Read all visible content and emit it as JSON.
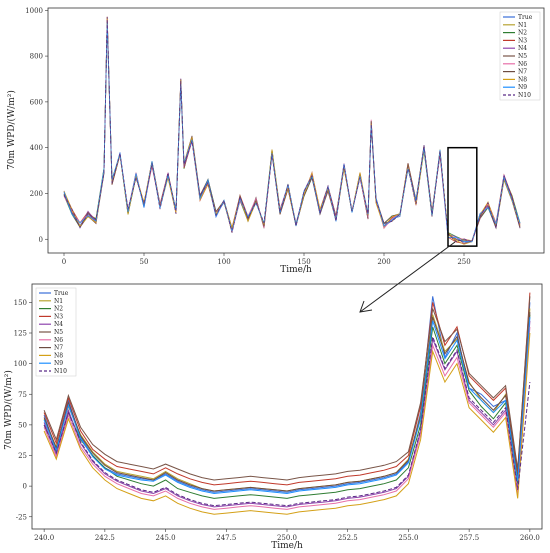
{
  "chart_data": [
    {
      "type": "line",
      "xlabel": "Time/h",
      "ylabel": "70m WPD/(W/m²)",
      "xlim": [
        -10,
        300
      ],
      "ylim": [
        -60,
        1010
      ],
      "xticks": [
        0,
        50,
        100,
        150,
        200,
        250
      ],
      "yticks": [
        0,
        200,
        400,
        600,
        800,
        1000
      ],
      "legend": {
        "placement": "top-right",
        "entries": [
          "True",
          "N1",
          "N2",
          "N3",
          "N4",
          "N5",
          "N6",
          "N7",
          "N8",
          "N9",
          "N10"
        ]
      },
      "zoom_box": {
        "x": [
          240,
          258
        ],
        "y": [
          -30,
          400
        ]
      },
      "series_base": {
        "x": [
          0,
          5,
          10,
          15,
          20,
          25,
          27,
          30,
          35,
          40,
          45,
          50,
          55,
          60,
          65,
          70,
          73,
          75,
          80,
          85,
          90,
          95,
          100,
          105,
          110,
          115,
          120,
          125,
          130,
          135,
          140,
          145,
          150,
          155,
          160,
          165,
          170,
          175,
          180,
          185,
          190,
          192,
          195,
          200,
          205,
          210,
          215,
          220,
          225,
          230,
          235,
          240,
          245,
          250,
          255,
          260,
          265,
          270,
          275,
          280,
          285
        ],
        "y": [
          200,
          120,
          60,
          110,
          80,
          300,
          960,
          250,
          380,
          120,
          280,
          150,
          330,
          140,
          280,
          120,
          690,
          320,
          440,
          180,
          250,
          110,
          160,
          40,
          180,
          90,
          170,
          60,
          380,
          120,
          230,
          70,
          200,
          280,
          120,
          220,
          90,
          320,
          120,
          280,
          100,
          510,
          170,
          60,
          90,
          100,
          320,
          160,
          400,
          110,
          380,
          20,
          0,
          -10,
          -5,
          100,
          150,
          60,
          270,
          180,
          60
        ]
      }
    },
    {
      "type": "line",
      "xlabel": "Time/h",
      "ylabel": "70m WPD/(W/m²)",
      "xlim": [
        239.5,
        260.5
      ],
      "ylim": [
        -35,
        165
      ],
      "xticks": [
        240.0,
        242.5,
        245.0,
        247.5,
        250.0,
        252.5,
        255.0,
        257.5,
        260.0
      ],
      "yticks": [
        -25,
        0,
        25,
        50,
        75,
        100,
        125,
        150
      ],
      "legend": {
        "placement": "top-left",
        "entries": [
          "True",
          "N1",
          "N2",
          "N3",
          "N4",
          "N5",
          "N6",
          "N7",
          "N8",
          "N9",
          "N10"
        ]
      },
      "x": [
        240.0,
        240.5,
        241.0,
        241.5,
        242.0,
        242.5,
        243.0,
        243.5,
        244.0,
        244.5,
        245.0,
        245.5,
        246.0,
        246.5,
        247.0,
        247.5,
        248.0,
        248.5,
        249.0,
        249.5,
        250.0,
        250.5,
        251.0,
        251.5,
        252.0,
        252.5,
        253.0,
        253.5,
        254.0,
        254.5,
        255.0,
        255.5,
        256.0,
        256.5,
        257.0,
        257.5,
        258.0,
        258.5,
        259.0,
        259.5,
        260.0
      ],
      "series": [
        {
          "name": "True",
          "color": "#3a6fd8",
          "values": [
            58,
            30,
            70,
            40,
            25,
            15,
            10,
            8,
            6,
            5,
            10,
            4,
            0,
            -3,
            -5,
            -4,
            -3,
            -2,
            -3,
            -4,
            -5,
            -3,
            -2,
            -1,
            0,
            2,
            3,
            5,
            7,
            10,
            20,
            60,
            155,
            105,
            125,
            80,
            75,
            65,
            70,
            5,
            150
          ]
        },
        {
          "name": "N1",
          "color": "#b8a432",
          "values": [
            55,
            32,
            65,
            42,
            28,
            18,
            12,
            10,
            8,
            6,
            12,
            6,
            2,
            -2,
            -4,
            -3,
            -2,
            -1,
            -2,
            -3,
            -4,
            -2,
            -1,
            0,
            1,
            3,
            4,
            6,
            8,
            11,
            22,
            58,
            140,
            110,
            120,
            85,
            70,
            60,
            75,
            8,
            145
          ]
        },
        {
          "name": "N2",
          "color": "#2e7d32",
          "values": [
            50,
            28,
            60,
            38,
            25,
            15,
            8,
            5,
            2,
            0,
            5,
            -2,
            -5,
            -8,
            -10,
            -9,
            -8,
            -7,
            -8,
            -9,
            -10,
            -8,
            -7,
            -6,
            -5,
            -3,
            -2,
            0,
            2,
            5,
            15,
            50,
            130,
            100,
            115,
            78,
            65,
            55,
            68,
            2,
            140
          ]
        },
        {
          "name": "N3",
          "color": "#c0392b",
          "values": [
            60,
            35,
            72,
            45,
            30,
            22,
            16,
            14,
            12,
            10,
            15,
            10,
            6,
            3,
            1,
            2,
            3,
            4,
            3,
            2,
            1,
            3,
            4,
            5,
            6,
            8,
            9,
            11,
            13,
            16,
            25,
            65,
            150,
            115,
            130,
            90,
            80,
            70,
            80,
            12,
            158
          ]
        },
        {
          "name": "N4",
          "color": "#8e44ad",
          "values": [
            52,
            26,
            62,
            35,
            20,
            10,
            4,
            0,
            -4,
            -6,
            -2,
            -8,
            -12,
            -15,
            -17,
            -16,
            -15,
            -14,
            -15,
            -16,
            -17,
            -15,
            -14,
            -13,
            -12,
            -10,
            -9,
            -7,
            -5,
            -2,
            8,
            45,
            120,
            95,
            110,
            70,
            60,
            50,
            62,
            -4,
            135
          ]
        },
        {
          "name": "N5",
          "color": "#795548",
          "values": [
            62,
            38,
            74,
            48,
            34,
            26,
            20,
            18,
            16,
            14,
            18,
            14,
            10,
            7,
            5,
            6,
            7,
            8,
            7,
            6,
            5,
            7,
            8,
            9,
            10,
            12,
            13,
            15,
            17,
            20,
            28,
            68,
            145,
            118,
            128,
            92,
            82,
            72,
            82,
            14,
            155
          ]
        },
        {
          "name": "N6",
          "color": "#e76fa8",
          "values": [
            48,
            24,
            58,
            32,
            18,
            8,
            2,
            -2,
            -6,
            -8,
            -4,
            -10,
            -14,
            -17,
            -19,
            -18,
            -17,
            -16,
            -17,
            -18,
            -19,
            -17,
            -16,
            -15,
            -14,
            -12,
            -11,
            -9,
            -7,
            -4,
            6,
            42,
            115,
            90,
            105,
            68,
            58,
            48,
            60,
            -6,
            130
          ]
        },
        {
          "name": "N7",
          "color": "#6d4c41",
          "values": [
            56,
            31,
            68,
            41,
            27,
            17,
            11,
            9,
            7,
            5,
            11,
            5,
            1,
            -2,
            -4,
            -3,
            -2,
            -1,
            -2,
            -3,
            -4,
            -2,
            -1,
            0,
            1,
            3,
            4,
            6,
            8,
            11,
            21,
            57,
            138,
            108,
            122,
            84,
            72,
            62,
            74,
            7,
            142
          ]
        },
        {
          "name": "N8",
          "color": "#d4a017",
          "values": [
            45,
            22,
            55,
            30,
            15,
            5,
            -2,
            -6,
            -10,
            -12,
            -8,
            -14,
            -18,
            -21,
            -23,
            -22,
            -21,
            -20,
            -21,
            -22,
            -23,
            -21,
            -20,
            -19,
            -18,
            -16,
            -15,
            -13,
            -11,
            -8,
            2,
            38,
            110,
            85,
            100,
            64,
            54,
            44,
            56,
            -10,
            125
          ]
        },
        {
          "name": "N9",
          "color": "#1e90ff",
          "values": [
            54,
            29,
            66,
            39,
            24,
            14,
            9,
            7,
            5,
            4,
            9,
            3,
            -1,
            -4,
            -6,
            -5,
            -4,
            -3,
            -4,
            -5,
            -6,
            -4,
            -3,
            -2,
            -1,
            1,
            2,
            4,
            6,
            9,
            19,
            55,
            135,
            104,
            119,
            80,
            70,
            60,
            70,
            4,
            138
          ]
        },
        {
          "name": "N10",
          "color": "#5b2a86",
          "values": [
            50,
            27,
            60,
            36,
            21,
            11,
            5,
            1,
            -3,
            -5,
            -1,
            -7,
            -11,
            -14,
            -16,
            -15,
            -14,
            -13,
            -14,
            -15,
            -16,
            -14,
            -13,
            -12,
            -11,
            -9,
            -8,
            -6,
            -4,
            -1,
            9,
            46,
            122,
            96,
            111,
            72,
            62,
            52,
            64,
            -3,
            85
          ],
          "dashed": true
        }
      ]
    }
  ]
}
